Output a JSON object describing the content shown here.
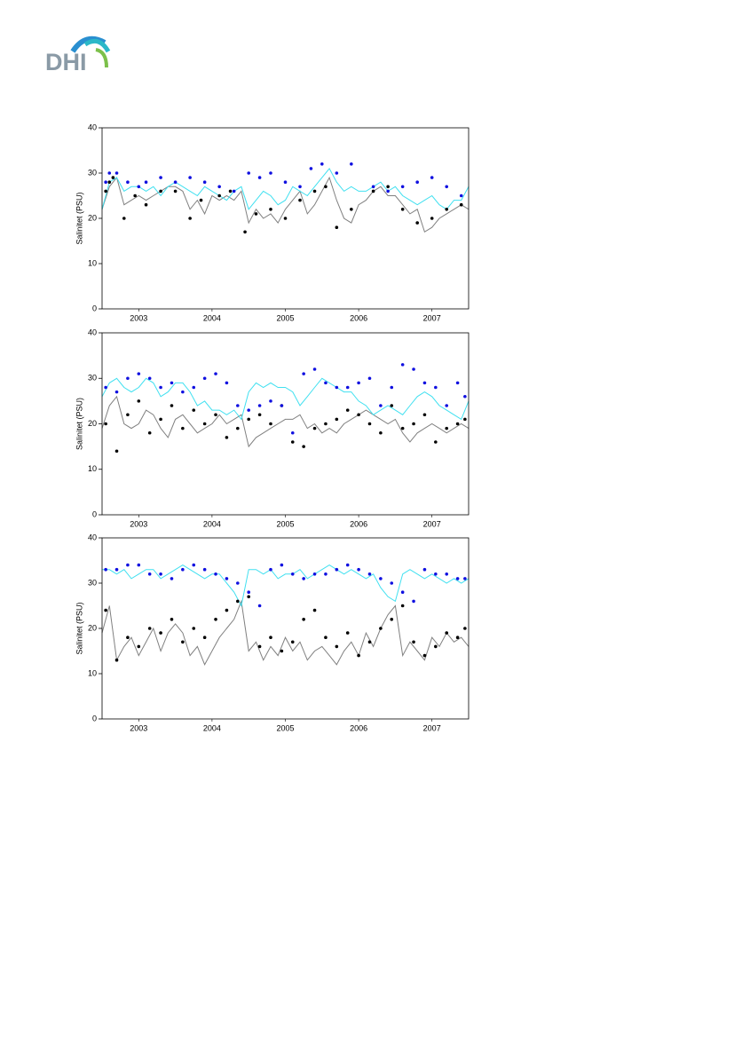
{
  "logo": {
    "text": "DHI"
  },
  "chart_data": [
    {
      "type": "line",
      "ylabel": "Salinitet (PSU)",
      "xlim": [
        2003,
        2008
      ],
      "ylim": [
        0,
        40
      ],
      "yticks": [
        0,
        10,
        20,
        30,
        40
      ],
      "xticks": [
        {
          "value": 2003.5,
          "label": "2003"
        },
        {
          "value": 2004.5,
          "label": "2004"
        },
        {
          "value": 2005.5,
          "label": "2005"
        },
        {
          "value": 2006.5,
          "label": "2006"
        },
        {
          "value": 2007.5,
          "label": "2007"
        }
      ],
      "x": [
        2003.0,
        2003.1,
        2003.2,
        2003.3,
        2003.4,
        2003.5,
        2003.6,
        2003.7,
        2003.8,
        2003.9,
        2004.0,
        2004.1,
        2004.2,
        2004.3,
        2004.4,
        2004.5,
        2004.6,
        2004.7,
        2004.8,
        2004.9,
        2005.0,
        2005.1,
        2005.2,
        2005.3,
        2005.4,
        2005.5,
        2005.6,
        2005.7,
        2005.8,
        2005.9,
        2006.0,
        2006.1,
        2006.2,
        2006.3,
        2006.4,
        2006.5,
        2006.6,
        2006.7,
        2006.8,
        2006.9,
        2007.0,
        2007.1,
        2007.2,
        2007.3,
        2007.4,
        2007.5,
        2007.6,
        2007.7,
        2007.8,
        2007.9,
        2008.0
      ],
      "series": [
        {
          "style": "line",
          "color": "#808080",
          "values": [
            22,
            27,
            29,
            23,
            24,
            25,
            24,
            25,
            26,
            27,
            27,
            26,
            22,
            24,
            21,
            25,
            24,
            25,
            24,
            26,
            19,
            22,
            20,
            21,
            19,
            22,
            24,
            26,
            21,
            23,
            26,
            29,
            24,
            20,
            19,
            23,
            24,
            26,
            27,
            25,
            25,
            23,
            21,
            22,
            17,
            18,
            20,
            21,
            22,
            23,
            22
          ]
        },
        {
          "style": "line",
          "color": "#40e0f0",
          "values": [
            22,
            28,
            29,
            26,
            27,
            27,
            26,
            27,
            25,
            27,
            28,
            27,
            26,
            25,
            27,
            26,
            25,
            24,
            26,
            27,
            22,
            24,
            26,
            25,
            23,
            24,
            27,
            26,
            25,
            27,
            29,
            31,
            28,
            26,
            27,
            26,
            26,
            27,
            28,
            26,
            27,
            25,
            24,
            23,
            24,
            25,
            23,
            22,
            24,
            24,
            27
          ]
        },
        {
          "style": "marker",
          "color": "#000000",
          "x": [
            2003.05,
            2003.1,
            2003.15,
            2003.3,
            2003.45,
            2003.6,
            2003.8,
            2004.0,
            2004.2,
            2004.35,
            2004.6,
            2004.75,
            2004.95,
            2005.1,
            2005.3,
            2005.5,
            2005.7,
            2005.9,
            2006.05,
            2006.2,
            2006.4,
            2006.7,
            2006.9,
            2007.1,
            2007.3,
            2007.5,
            2007.7,
            2007.9
          ],
          "values": [
            26,
            28,
            29,
            20,
            25,
            23,
            26,
            26,
            20,
            24,
            25,
            26,
            17,
            21,
            22,
            20,
            24,
            26,
            27,
            18,
            22,
            26,
            27,
            22,
            19,
            20,
            22,
            23
          ]
        },
        {
          "style": "marker",
          "color": "#1010e0",
          "x": [
            2003.05,
            2003.1,
            2003.2,
            2003.35,
            2003.5,
            2003.6,
            2003.8,
            2004.0,
            2004.2,
            2004.4,
            2004.6,
            2004.8,
            2005.0,
            2005.15,
            2005.3,
            2005.5,
            2005.7,
            2005.85,
            2006.0,
            2006.2,
            2006.4,
            2006.7,
            2006.9,
            2007.1,
            2007.3,
            2007.5,
            2007.7,
            2007.9
          ],
          "values": [
            28,
            30,
            30,
            28,
            27,
            28,
            29,
            28,
            29,
            28,
            27,
            26,
            30,
            29,
            30,
            28,
            27,
            31,
            32,
            30,
            32,
            27,
            26,
            27,
            28,
            29,
            27,
            25
          ]
        }
      ]
    },
    {
      "type": "line",
      "ylabel": "Salinitet (PSU)",
      "xlim": [
        2003,
        2008
      ],
      "ylim": [
        0,
        40
      ],
      "yticks": [
        0,
        10,
        20,
        30,
        40
      ],
      "xticks": [
        {
          "value": 2003.5,
          "label": "2003"
        },
        {
          "value": 2004.5,
          "label": "2004"
        },
        {
          "value": 2005.5,
          "label": "2005"
        },
        {
          "value": 2006.5,
          "label": "2006"
        },
        {
          "value": 2007.5,
          "label": "2007"
        }
      ],
      "x": [
        2003.0,
        2003.1,
        2003.2,
        2003.3,
        2003.4,
        2003.5,
        2003.6,
        2003.7,
        2003.8,
        2003.9,
        2004.0,
        2004.1,
        2004.2,
        2004.3,
        2004.4,
        2004.5,
        2004.6,
        2004.7,
        2004.8,
        2004.9,
        2005.0,
        2005.1,
        2005.2,
        2005.3,
        2005.4,
        2005.5,
        2005.6,
        2005.7,
        2005.8,
        2005.9,
        2006.0,
        2006.1,
        2006.2,
        2006.3,
        2006.4,
        2006.5,
        2006.6,
        2006.7,
        2006.8,
        2006.9,
        2007.0,
        2007.1,
        2007.2,
        2007.3,
        2007.4,
        2007.5,
        2007.6,
        2007.7,
        2007.8,
        2007.9,
        2008.0
      ],
      "series": [
        {
          "style": "line",
          "color": "#808080",
          "values": [
            19,
            24,
            26,
            20,
            19,
            20,
            23,
            22,
            19,
            17,
            21,
            22,
            20,
            18,
            19,
            20,
            22,
            20,
            21,
            22,
            15,
            17,
            18,
            19,
            20,
            21,
            21,
            22,
            19,
            20,
            18,
            19,
            18,
            20,
            21,
            22,
            23,
            22,
            21,
            20,
            21,
            18,
            16,
            18,
            19,
            20,
            19,
            18,
            19,
            20,
            19
          ]
        },
        {
          "style": "line",
          "color": "#40e0f0",
          "values": [
            26,
            29,
            30,
            28,
            27,
            28,
            30,
            29,
            26,
            27,
            29,
            29,
            27,
            24,
            25,
            23,
            23,
            22,
            23,
            21,
            27,
            29,
            28,
            29,
            28,
            28,
            27,
            24,
            26,
            28,
            30,
            29,
            28,
            27,
            27,
            25,
            24,
            22,
            23,
            24,
            23,
            22,
            24,
            26,
            27,
            26,
            24,
            23,
            22,
            21,
            25
          ]
        },
        {
          "style": "marker",
          "color": "#000000",
          "x": [
            2003.05,
            2003.2,
            2003.35,
            2003.5,
            2003.65,
            2003.8,
            2003.95,
            2004.1,
            2004.25,
            2004.4,
            2004.55,
            2004.7,
            2004.85,
            2005.0,
            2005.15,
            2005.3,
            2005.45,
            2005.6,
            2005.75,
            2005.9,
            2006.05,
            2006.2,
            2006.35,
            2006.5,
            2006.65,
            2006.8,
            2006.95,
            2007.1,
            2007.25,
            2007.4,
            2007.55,
            2007.7,
            2007.85,
            2007.95
          ],
          "values": [
            20,
            14,
            22,
            25,
            18,
            21,
            24,
            19,
            23,
            20,
            22,
            17,
            19,
            21,
            22,
            20,
            24,
            16,
            15,
            19,
            20,
            21,
            23,
            22,
            20,
            18,
            24,
            19,
            20,
            22,
            16,
            19,
            20,
            21
          ]
        },
        {
          "style": "marker",
          "color": "#1010e0",
          "x": [
            2003.05,
            2003.2,
            2003.35,
            2003.5,
            2003.65,
            2003.8,
            2003.95,
            2004.1,
            2004.25,
            2004.4,
            2004.55,
            2004.7,
            2004.85,
            2005.0,
            2005.15,
            2005.3,
            2005.45,
            2005.6,
            2005.75,
            2005.9,
            2006.05,
            2006.2,
            2006.35,
            2006.5,
            2006.65,
            2006.8,
            2006.95,
            2007.1,
            2007.25,
            2007.4,
            2007.55,
            2007.7,
            2007.85,
            2007.95
          ],
          "values": [
            28,
            27,
            30,
            31,
            30,
            28,
            29,
            27,
            28,
            30,
            31,
            29,
            24,
            23,
            24,
            25,
            24,
            18,
            31,
            32,
            29,
            28,
            28,
            29,
            30,
            24,
            28,
            33,
            32,
            29,
            28,
            24,
            29,
            26
          ]
        }
      ]
    },
    {
      "type": "line",
      "ylabel": "Salinitet (PSU)",
      "xlim": [
        2003,
        2008
      ],
      "ylim": [
        0,
        40
      ],
      "yticks": [
        0,
        10,
        20,
        30,
        40
      ],
      "xticks": [
        {
          "value": 2003.5,
          "label": "2003"
        },
        {
          "value": 2004.5,
          "label": "2004"
        },
        {
          "value": 2005.5,
          "label": "2005"
        },
        {
          "value": 2006.5,
          "label": "2006"
        },
        {
          "value": 2007.5,
          "label": "2007"
        }
      ],
      "x": [
        2003.0,
        2003.1,
        2003.2,
        2003.3,
        2003.4,
        2003.5,
        2003.6,
        2003.7,
        2003.8,
        2003.9,
        2004.0,
        2004.1,
        2004.2,
        2004.3,
        2004.4,
        2004.5,
        2004.6,
        2004.7,
        2004.8,
        2004.9,
        2005.0,
        2005.1,
        2005.2,
        2005.3,
        2005.4,
        2005.5,
        2005.6,
        2005.7,
        2005.8,
        2005.9,
        2006.0,
        2006.1,
        2006.2,
        2006.3,
        2006.4,
        2006.5,
        2006.6,
        2006.7,
        2006.8,
        2006.9,
        2007.0,
        2007.1,
        2007.2,
        2007.3,
        2007.4,
        2007.5,
        2007.6,
        2007.7,
        2007.8,
        2007.9,
        2008.0
      ],
      "series": [
        {
          "style": "line",
          "color": "#808080",
          "values": [
            19,
            25,
            13,
            16,
            18,
            14,
            17,
            20,
            15,
            19,
            21,
            19,
            14,
            16,
            12,
            15,
            18,
            20,
            22,
            26,
            15,
            17,
            13,
            16,
            14,
            18,
            15,
            17,
            13,
            15,
            16,
            14,
            12,
            15,
            17,
            14,
            19,
            16,
            20,
            23,
            25,
            14,
            17,
            15,
            13,
            18,
            16,
            19,
            17,
            18,
            16
          ]
        },
        {
          "style": "line",
          "color": "#40e0f0",
          "values": [
            33,
            33,
            32,
            33,
            31,
            32,
            33,
            33,
            31,
            32,
            33,
            34,
            33,
            32,
            31,
            32,
            32,
            30,
            28,
            25,
            33,
            33,
            32,
            33,
            31,
            32,
            32,
            33,
            31,
            32,
            33,
            34,
            33,
            32,
            33,
            32,
            31,
            32,
            29,
            27,
            26,
            32,
            33,
            32,
            31,
            32,
            31,
            30,
            31,
            30,
            31
          ]
        },
        {
          "style": "marker",
          "color": "#000000",
          "x": [
            2003.05,
            2003.2,
            2003.35,
            2003.5,
            2003.65,
            2003.8,
            2003.95,
            2004.1,
            2004.25,
            2004.4,
            2004.55,
            2004.7,
            2004.85,
            2005.0,
            2005.15,
            2005.3,
            2005.45,
            2005.6,
            2005.75,
            2005.9,
            2006.05,
            2006.2,
            2006.35,
            2006.5,
            2006.65,
            2006.8,
            2006.95,
            2007.1,
            2007.25,
            2007.4,
            2007.55,
            2007.7,
            2007.85,
            2007.95
          ],
          "values": [
            24,
            13,
            18,
            16,
            20,
            19,
            22,
            17,
            20,
            18,
            22,
            24,
            26,
            27,
            16,
            18,
            15,
            17,
            22,
            24,
            18,
            16,
            19,
            14,
            17,
            20,
            22,
            25,
            17,
            14,
            16,
            19,
            18,
            20
          ]
        },
        {
          "style": "marker",
          "color": "#1010e0",
          "x": [
            2003.05,
            2003.2,
            2003.35,
            2003.5,
            2003.65,
            2003.8,
            2003.95,
            2004.1,
            2004.25,
            2004.4,
            2004.55,
            2004.7,
            2004.85,
            2005.0,
            2005.15,
            2005.3,
            2005.45,
            2005.6,
            2005.75,
            2005.9,
            2006.05,
            2006.2,
            2006.35,
            2006.5,
            2006.65,
            2006.8,
            2006.95,
            2007.1,
            2007.25,
            2007.4,
            2007.55,
            2007.7,
            2007.85,
            2007.95
          ],
          "values": [
            33,
            33,
            34,
            34,
            32,
            32,
            31,
            33,
            34,
            33,
            32,
            31,
            30,
            28,
            25,
            33,
            34,
            32,
            31,
            32,
            32,
            33,
            34,
            33,
            32,
            31,
            30,
            28,
            26,
            33,
            32,
            32,
            31,
            31
          ]
        }
      ]
    }
  ]
}
